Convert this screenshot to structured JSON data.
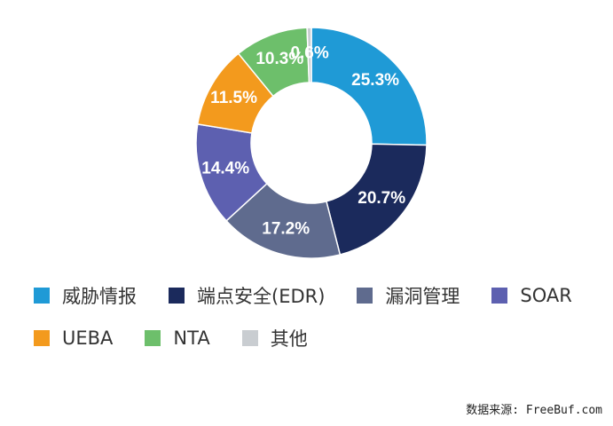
{
  "chart_data": {
    "type": "pie",
    "donut": true,
    "categories": [
      "威胁情报",
      "端点安全(EDR)",
      "漏洞管理",
      "SOAR",
      "UEBA",
      "NTA",
      "其他"
    ],
    "values": [
      25.3,
      20.7,
      17.2,
      14.4,
      11.5,
      10.3,
      0.6
    ],
    "value_labels": [
      "25.3%",
      "20.7%",
      "17.2%",
      "14.4%",
      "11.5%",
      "10.3%",
      "0.6%"
    ],
    "colors": [
      "#1f9ad6",
      "#1b2a5c",
      "#5f6b8e",
      "#5d60b0",
      "#f39a1d",
      "#6dbf6b",
      "#c9cdd1"
    ],
    "legend": "bottom",
    "legend_order": [
      0,
      1,
      2,
      3,
      4,
      5,
      6
    ]
  },
  "source_text": "数据来源: FreeBuf.com"
}
